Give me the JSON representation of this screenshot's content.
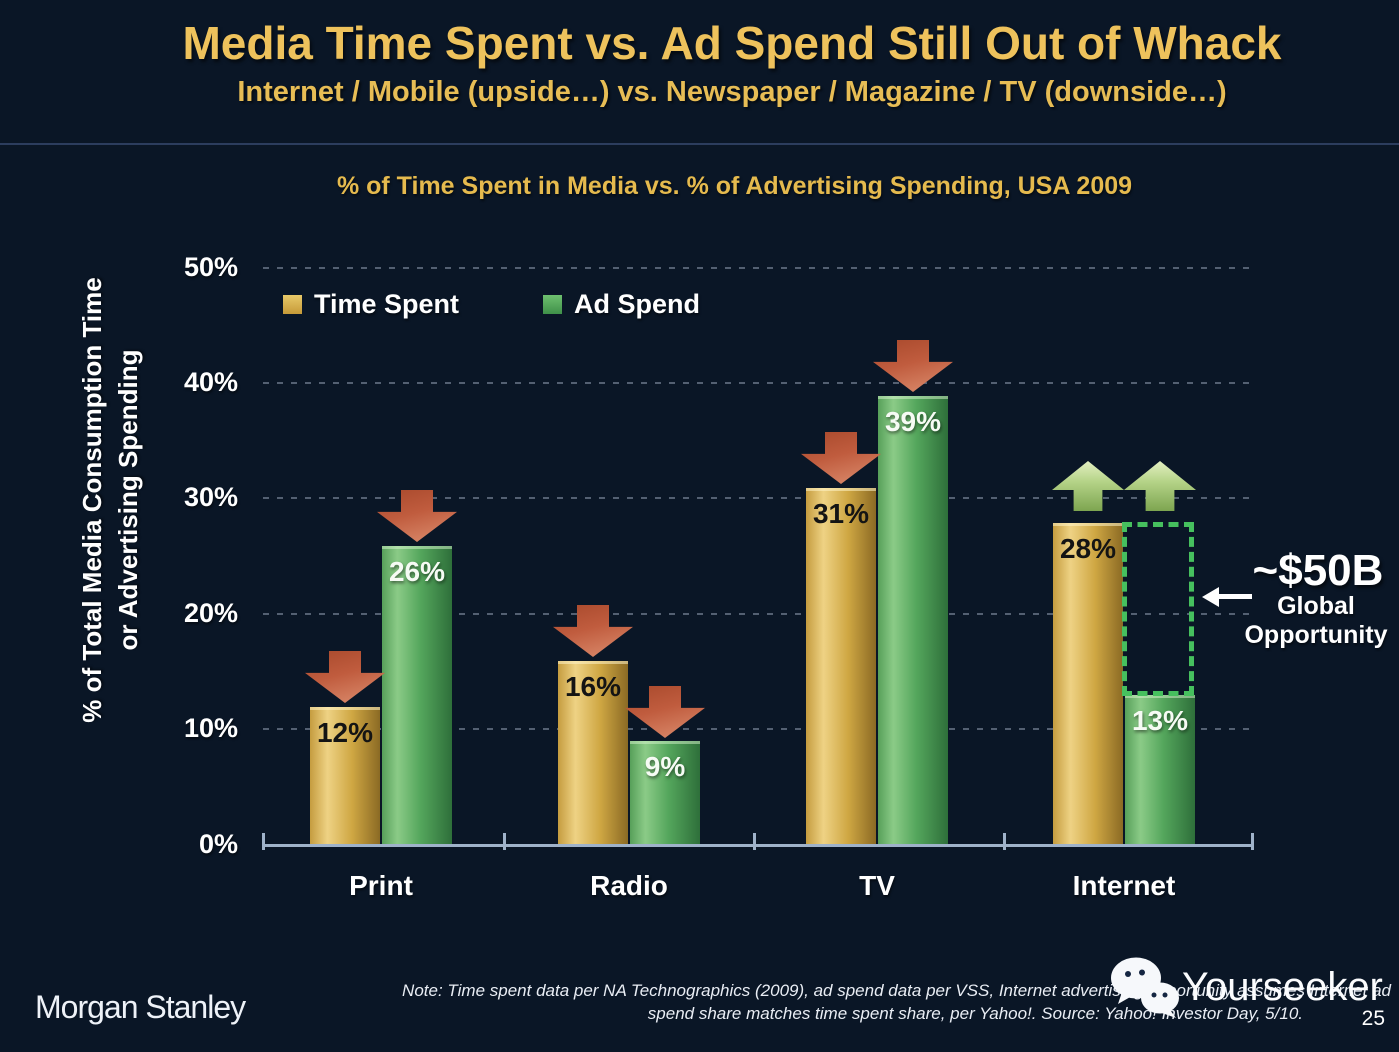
{
  "slide": {
    "title": "Media Time Spent vs. Ad Spend Still Out of Whack",
    "subtitle": "Internet / Mobile (upside…) vs. Newspaper / Magazine / TV (downside…)",
    "page_number": "25"
  },
  "chart_data": {
    "type": "bar",
    "title": "% of Time Spent in Media vs. % of Advertising Spending, USA 2009",
    "categories": [
      "Print",
      "Radio",
      "TV",
      "Internet"
    ],
    "series": [
      {
        "name": "Time Spent",
        "color": "#d9ae4f",
        "values": [
          12,
          16,
          31,
          28
        ],
        "labels": [
          "12%",
          "16%",
          "31%",
          "28%"
        ],
        "trend": [
          "down",
          "down",
          "down",
          "up"
        ]
      },
      {
        "name": "Ad Spend",
        "color": "#57ac5d",
        "values": [
          26,
          9,
          39,
          13
        ],
        "labels": [
          "26%",
          "9%",
          "39%",
          "13%"
        ],
        "trend": [
          "down",
          "down",
          "down",
          "up"
        ]
      }
    ],
    "ylabel_line1": "% of Total Media Consumption Time",
    "ylabel_line2": "or Advertising Spending",
    "yticks_desc": [
      "50%",
      "40%",
      "30%",
      "20%",
      "10%",
      "0%"
    ],
    "ylim": [
      0,
      50
    ],
    "grid": "dotted horizontal lines every 10%",
    "legend_position": "top-left inside plot",
    "annotation": {
      "value": "~$50B",
      "line1": "Global",
      "line2": "Opportunity",
      "meaning": "dotted box gap between Internet ad spend 13% and time spent 28%"
    }
  },
  "footer": {
    "brand": "Morgan Stanley",
    "note_line1": "Note: Time spent data per NA Technographics (2009), ad spend data per VSS, Internet advertising opportunity assumes Internet ad",
    "note_line2": "spend share matches time spent share, per Yahoo!. Source: Yahoo! Investor Day, 5/10.",
    "watermark": "Yourseeker"
  },
  "colors": {
    "background_header": "#0a1626",
    "background_body": "#152642",
    "title_gold": "#eec25c",
    "bar_gold": "#d9ae4f",
    "bar_green": "#57ac5d",
    "arrow_down_red": "#c05c3e",
    "arrow_up_green": "#b6d489",
    "dotted_box_green": "#46c05e",
    "axis_line": "#9fb2c9",
    "text_white": "#ffffff"
  }
}
